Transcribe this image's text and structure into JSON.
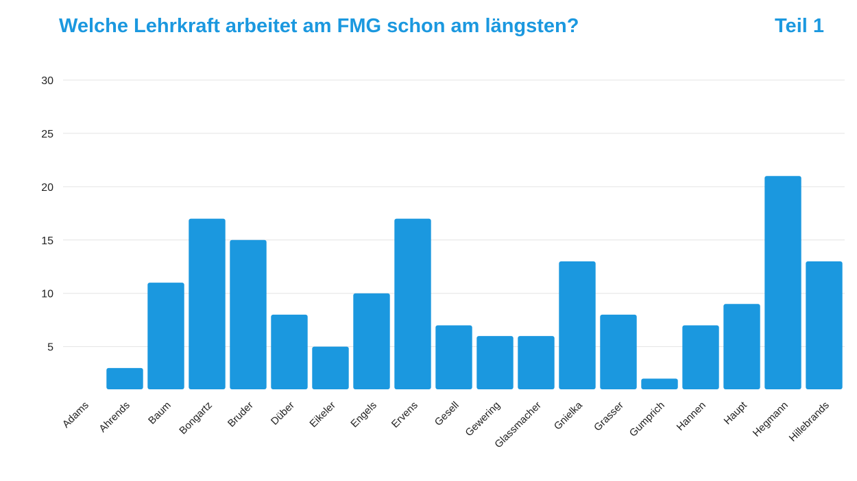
{
  "header": {
    "title": "Welche Lehrkraft arbeitet am FMG schon am längsten?",
    "part": "Teil 1"
  },
  "chart_data": {
    "type": "bar",
    "categories": [
      "Adams",
      "Ahrends",
      "Baum",
      "Bongartz",
      "Bruder",
      "Düber",
      "Eikeler",
      "Engels",
      "Ervens",
      "Gesell",
      "Gewering",
      "Glassmacher",
      "Gnielka",
      "Grasser",
      "Gumprich",
      "Hannen",
      "Haupt",
      "Hegmann",
      "Hillebrands"
    ],
    "values": [
      0,
      3,
      11,
      17,
      15,
      8,
      5,
      10,
      17,
      7,
      6,
      6,
      13,
      8,
      2,
      7,
      9,
      21,
      13
    ],
    "yticks": [
      5,
      10,
      15,
      20,
      25,
      30
    ],
    "ylim": [
      1,
      30
    ],
    "grid": true,
    "bar_color": "#1b98df",
    "grid_color": "#e3e3e3"
  }
}
